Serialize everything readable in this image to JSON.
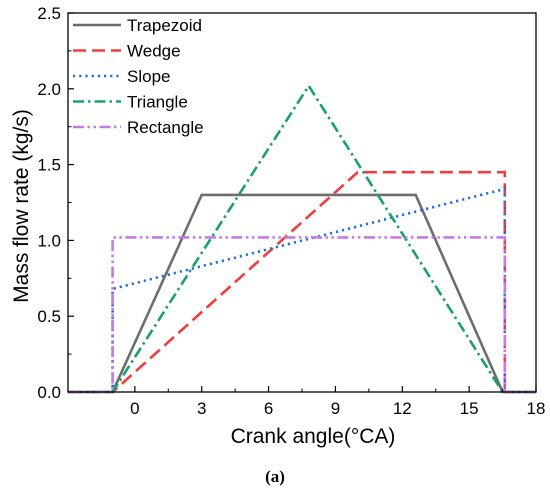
{
  "chart_data": {
    "type": "line",
    "title": "",
    "caption": "(a)",
    "xlabel": "Crank angle(°CA)",
    "ylabel": "Mass flow rate (kg/s)",
    "xlim": [
      -3,
      18
    ],
    "ylim": [
      0,
      2.5
    ],
    "x_ticks": [
      0,
      3,
      6,
      9,
      12,
      15,
      18
    ],
    "x_tick_labels": [
      "0",
      "3",
      "6",
      "9",
      "12",
      "15",
      "18"
    ],
    "y_ticks": [
      0,
      0.5,
      1.0,
      1.5,
      2.0,
      2.5
    ],
    "y_tick_labels": [
      "0.0",
      "0.5",
      "1.0",
      "1.5",
      "2.0",
      "2.5"
    ],
    "grid": false,
    "legend_position": "top-left",
    "series": [
      {
        "name": "Trapezoid",
        "color": "#6d6d6d",
        "dash": "solid",
        "x": [
          -3,
          -1.0,
          3.0,
          12.6,
          16.5,
          18
        ],
        "y": [
          0,
          0,
          1.3,
          1.3,
          0,
          0
        ]
      },
      {
        "name": "Wedge",
        "color": "#f03c3c",
        "dash": "dashed",
        "x": [
          -3,
          -1.0,
          10.0,
          16.6,
          16.6,
          18
        ],
        "y": [
          0,
          0,
          1.45,
          1.45,
          0,
          0
        ]
      },
      {
        "name": "Slope",
        "color": "#1e6fd9",
        "dash": "dotted",
        "x": [
          -3,
          -1.0,
          -1.0,
          16.6,
          16.6,
          18
        ],
        "y": [
          0,
          0,
          0.68,
          1.34,
          0,
          0
        ]
      },
      {
        "name": "Triangle",
        "color": "#1aa06b",
        "dash": "dashdot",
        "x": [
          -3,
          -1.0,
          7.8,
          16.5,
          18
        ],
        "y": [
          0,
          0,
          2.02,
          0,
          0
        ]
      },
      {
        "name": "Rectangle",
        "color": "#c57ae6",
        "dash": "dashdotdot",
        "x": [
          -3,
          -1.0,
          -1.0,
          16.6,
          16.6,
          18
        ],
        "y": [
          0,
          0,
          1.02,
          1.02,
          0,
          0
        ]
      }
    ]
  }
}
